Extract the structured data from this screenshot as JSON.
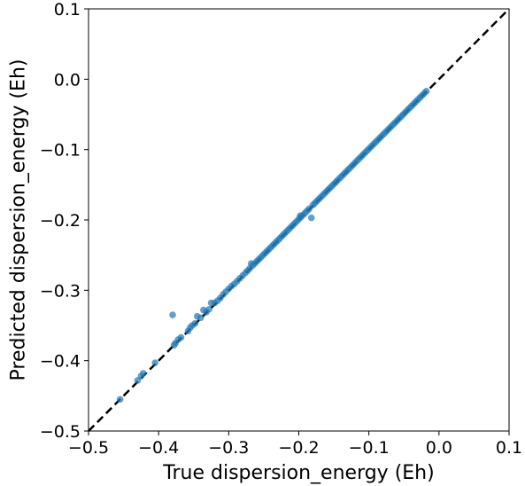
{
  "chart_data": {
    "type": "scatter",
    "title": "",
    "xlabel": "True dispersion_energy (Eh)",
    "ylabel": "Predicted dispersion_energy (Eh)",
    "xlim": [
      -0.5,
      0.1
    ],
    "ylim": [
      -0.5,
      0.1
    ],
    "grid": false,
    "legend": "none",
    "x_ticks": [
      -0.5,
      -0.4,
      -0.3,
      -0.2,
      -0.1,
      0.0,
      0.1
    ],
    "y_ticks": [
      -0.5,
      -0.4,
      -0.3,
      -0.2,
      -0.1,
      0.0,
      0.1
    ],
    "x_tick_labels": [
      "−0.5",
      "−0.4",
      "−0.3",
      "−0.2",
      "−0.1",
      "0.0",
      "0.1"
    ],
    "y_tick_labels": [
      "−0.5",
      "−0.4",
      "−0.3",
      "−0.2",
      "−0.1",
      "0.0",
      "0.1"
    ],
    "reference_line": {
      "style": "dashed",
      "color": "#000000",
      "from": [
        -0.5,
        -0.5
      ],
      "to": [
        0.1,
        0.1
      ]
    },
    "point_color": "#1f77b4",
    "point_opacity": 0.7,
    "series": [
      {
        "points": [
          [
            -0.455,
            -0.455
          ],
          [
            -0.43,
            -0.428
          ],
          [
            -0.425,
            -0.422
          ],
          [
            -0.422,
            -0.418
          ],
          [
            -0.405,
            -0.403
          ],
          [
            -0.38,
            -0.335
          ],
          [
            -0.378,
            -0.378
          ],
          [
            -0.376,
            -0.375
          ],
          [
            -0.372,
            -0.37
          ],
          [
            -0.368,
            -0.367
          ],
          [
            -0.358,
            -0.358
          ],
          [
            -0.355,
            -0.353
          ],
          [
            -0.352,
            -0.35
          ],
          [
            -0.348,
            -0.347
          ],
          [
            -0.345,
            -0.337
          ],
          [
            -0.34,
            -0.339
          ],
          [
            -0.336,
            -0.328
          ],
          [
            -0.332,
            -0.331
          ],
          [
            -0.328,
            -0.327
          ],
          [
            -0.325,
            -0.318
          ],
          [
            -0.32,
            -0.318
          ],
          [
            -0.316,
            -0.315
          ],
          [
            -0.312,
            -0.311
          ],
          [
            -0.308,
            -0.306
          ],
          [
            -0.304,
            -0.302
          ],
          [
            -0.3,
            -0.298
          ],
          [
            -0.296,
            -0.294
          ],
          [
            -0.292,
            -0.291
          ],
          [
            -0.288,
            -0.287
          ],
          [
            -0.284,
            -0.283
          ],
          [
            -0.28,
            -0.279
          ],
          [
            -0.276,
            -0.275
          ],
          [
            -0.273,
            -0.272
          ],
          [
            -0.27,
            -0.269
          ],
          [
            -0.268,
            -0.262
          ],
          [
            -0.266,
            -0.265
          ],
          [
            -0.263,
            -0.262
          ],
          [
            -0.26,
            -0.259
          ],
          [
            -0.257,
            -0.256
          ],
          [
            -0.254,
            -0.253
          ],
          [
            -0.251,
            -0.25
          ],
          [
            -0.248,
            -0.247
          ],
          [
            -0.245,
            -0.244
          ],
          [
            -0.242,
            -0.241
          ],
          [
            -0.239,
            -0.238
          ],
          [
            -0.236,
            -0.235
          ],
          [
            -0.233,
            -0.232
          ],
          [
            -0.23,
            -0.229
          ],
          [
            -0.227,
            -0.226
          ],
          [
            -0.224,
            -0.223
          ],
          [
            -0.221,
            -0.22
          ],
          [
            -0.218,
            -0.217
          ],
          [
            -0.215,
            -0.214
          ],
          [
            -0.212,
            -0.211
          ],
          [
            -0.209,
            -0.208
          ],
          [
            -0.206,
            -0.205
          ],
          [
            -0.203,
            -0.202
          ],
          [
            -0.2,
            -0.199
          ],
          [
            -0.198,
            -0.194
          ],
          [
            -0.197,
            -0.196
          ],
          [
            -0.194,
            -0.193
          ],
          [
            -0.191,
            -0.19
          ],
          [
            -0.188,
            -0.187
          ],
          [
            -0.185,
            -0.184
          ],
          [
            -0.182,
            -0.197
          ],
          [
            -0.18,
            -0.179
          ],
          [
            -0.177,
            -0.176
          ],
          [
            -0.174,
            -0.173
          ],
          [
            -0.171,
            -0.17
          ],
          [
            -0.168,
            -0.167
          ],
          [
            -0.165,
            -0.164
          ],
          [
            -0.162,
            -0.161
          ],
          [
            -0.159,
            -0.158
          ],
          [
            -0.156,
            -0.155
          ],
          [
            -0.153,
            -0.152
          ],
          [
            -0.15,
            -0.149
          ],
          [
            -0.147,
            -0.146
          ],
          [
            -0.144,
            -0.143
          ],
          [
            -0.141,
            -0.14
          ],
          [
            -0.138,
            -0.137
          ],
          [
            -0.135,
            -0.134
          ],
          [
            -0.132,
            -0.131
          ],
          [
            -0.129,
            -0.128
          ],
          [
            -0.126,
            -0.125
          ],
          [
            -0.123,
            -0.122
          ],
          [
            -0.12,
            -0.119
          ],
          [
            -0.117,
            -0.116
          ],
          [
            -0.114,
            -0.113
          ],
          [
            -0.111,
            -0.11
          ],
          [
            -0.108,
            -0.107
          ],
          [
            -0.105,
            -0.104
          ],
          [
            -0.102,
            -0.101
          ],
          [
            -0.099,
            -0.098
          ],
          [
            -0.096,
            -0.095
          ],
          [
            -0.093,
            -0.092
          ],
          [
            -0.09,
            -0.089
          ],
          [
            -0.087,
            -0.086
          ],
          [
            -0.084,
            -0.083
          ],
          [
            -0.081,
            -0.08
          ],
          [
            -0.078,
            -0.077
          ],
          [
            -0.075,
            -0.074
          ],
          [
            -0.072,
            -0.071
          ],
          [
            -0.069,
            -0.068
          ],
          [
            -0.066,
            -0.065
          ],
          [
            -0.063,
            -0.062
          ],
          [
            -0.06,
            -0.059
          ],
          [
            -0.057,
            -0.056
          ],
          [
            -0.054,
            -0.053
          ],
          [
            -0.051,
            -0.05
          ],
          [
            -0.048,
            -0.047
          ],
          [
            -0.045,
            -0.044
          ],
          [
            -0.042,
            -0.041
          ],
          [
            -0.039,
            -0.038
          ],
          [
            -0.036,
            -0.035
          ],
          [
            -0.033,
            -0.032
          ],
          [
            -0.03,
            -0.029
          ],
          [
            -0.027,
            -0.026
          ],
          [
            -0.024,
            -0.023
          ],
          [
            -0.021,
            -0.02
          ],
          [
            -0.018,
            -0.017
          ]
        ]
      }
    ]
  }
}
